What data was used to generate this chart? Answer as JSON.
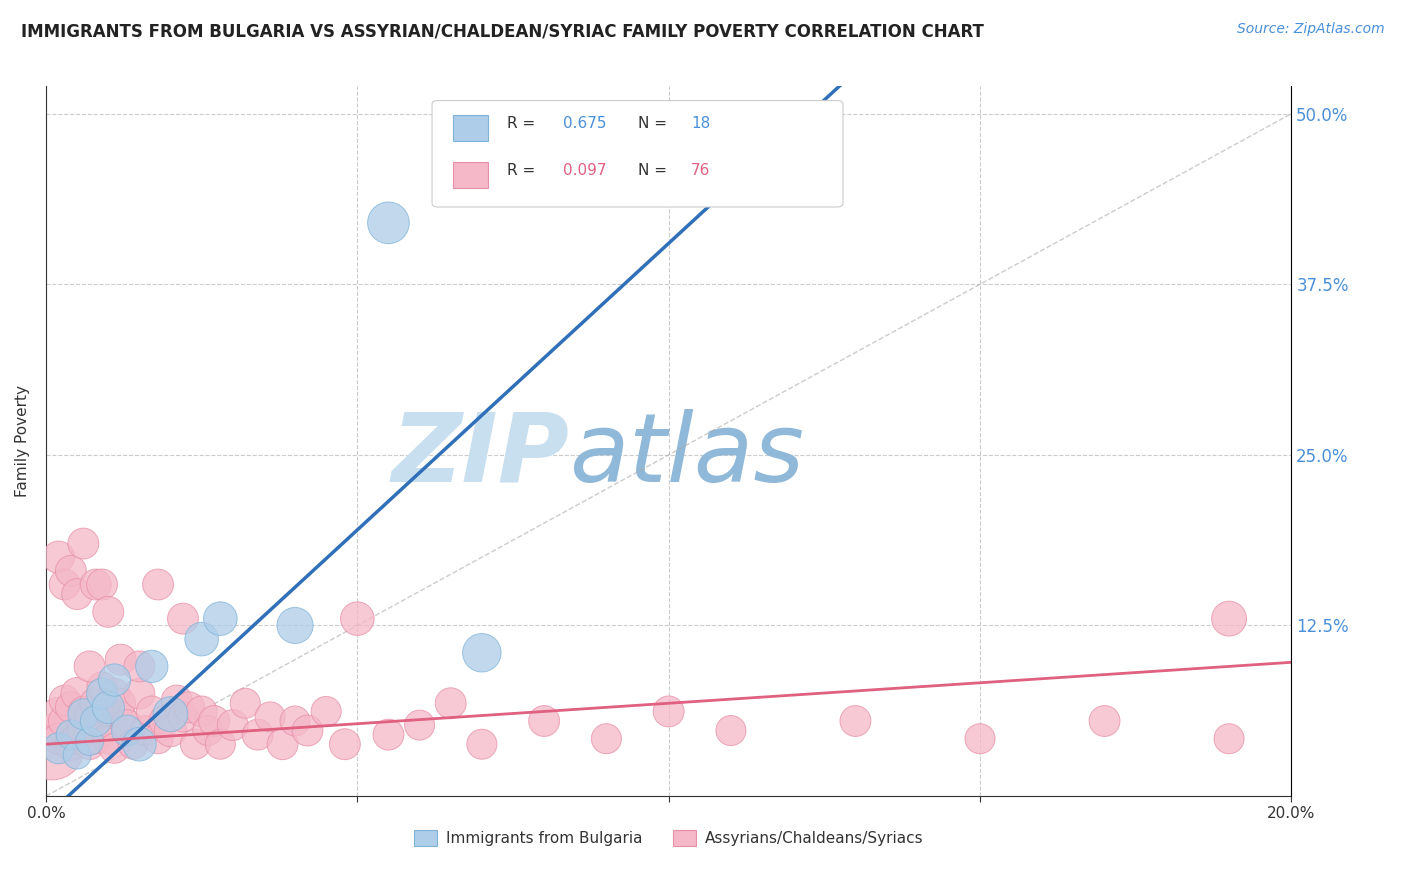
{
  "title": "IMMIGRANTS FROM BULGARIA VS ASSYRIAN/CHALDEAN/SYRIAC FAMILY POVERTY CORRELATION CHART",
  "source": "Source: ZipAtlas.com",
  "ylabel": "Family Poverty",
  "xlim": [
    0.0,
    0.2
  ],
  "ylim": [
    0.0,
    0.52
  ],
  "xticks": [
    0.0,
    0.05,
    0.1,
    0.15,
    0.2
  ],
  "yticks": [
    0.0,
    0.125,
    0.25,
    0.375,
    0.5
  ],
  "blue_R": "0.675",
  "blue_N": "18",
  "pink_R": "0.097",
  "pink_N": "76",
  "blue_color": "#aecde8",
  "pink_color": "#f4b8c8",
  "blue_edge_color": "#7fb3d8",
  "pink_edge_color": "#e88fa8",
  "blue_line_color": "#3070b8",
  "pink_line_color": "#e06080",
  "watermark_zip": "ZIP",
  "watermark_atlas": "atlas",
  "watermark_color_zip": "#c8dff0",
  "watermark_color_atlas": "#90b8d8",
  "legend_blue_label": "Immigrants from Bulgaria",
  "legend_pink_label": "Assyrians/Chaldeans/Syriacs",
  "blue_scatter_x": [
    0.002,
    0.004,
    0.005,
    0.006,
    0.007,
    0.008,
    0.009,
    0.01,
    0.011,
    0.013,
    0.015,
    0.017,
    0.02,
    0.025,
    0.028,
    0.04,
    0.055,
    0.07
  ],
  "blue_scatter_y": [
    0.035,
    0.045,
    0.03,
    0.06,
    0.04,
    0.055,
    0.075,
    0.065,
    0.085,
    0.048,
    0.038,
    0.095,
    0.06,
    0.115,
    0.13,
    0.125,
    0.42,
    0.105
  ],
  "blue_scatter_size": [
    55,
    50,
    45,
    55,
    45,
    55,
    55,
    60,
    60,
    55,
    65,
    60,
    70,
    65,
    65,
    75,
    100,
    85
  ],
  "pink_scatter_x": [
    0.001,
    0.001,
    0.002,
    0.002,
    0.003,
    0.003,
    0.004,
    0.004,
    0.005,
    0.005,
    0.006,
    0.006,
    0.007,
    0.007,
    0.008,
    0.008,
    0.009,
    0.009,
    0.01,
    0.01,
    0.011,
    0.011,
    0.012,
    0.012,
    0.013,
    0.014,
    0.015,
    0.016,
    0.017,
    0.018,
    0.019,
    0.02,
    0.021,
    0.022,
    0.023,
    0.024,
    0.025,
    0.026,
    0.027,
    0.028,
    0.03,
    0.032,
    0.034,
    0.036,
    0.038,
    0.04,
    0.042,
    0.045,
    0.048,
    0.05,
    0.055,
    0.06,
    0.065,
    0.07,
    0.08,
    0.09,
    0.1,
    0.11,
    0.13,
    0.15,
    0.17,
    0.19,
    0.002,
    0.003,
    0.004,
    0.005,
    0.006,
    0.007,
    0.008,
    0.009,
    0.01,
    0.012,
    0.015,
    0.018,
    0.022,
    0.19
  ],
  "pink_scatter_y": [
    0.035,
    0.048,
    0.06,
    0.042,
    0.055,
    0.07,
    0.038,
    0.065,
    0.075,
    0.042,
    0.05,
    0.062,
    0.038,
    0.058,
    0.068,
    0.042,
    0.055,
    0.08,
    0.042,
    0.062,
    0.075,
    0.035,
    0.058,
    0.068,
    0.052,
    0.038,
    0.075,
    0.048,
    0.062,
    0.042,
    0.055,
    0.048,
    0.07,
    0.058,
    0.065,
    0.038,
    0.062,
    0.048,
    0.055,
    0.038,
    0.052,
    0.068,
    0.045,
    0.058,
    0.038,
    0.055,
    0.048,
    0.062,
    0.038,
    0.13,
    0.045,
    0.052,
    0.068,
    0.038,
    0.055,
    0.042,
    0.062,
    0.048,
    0.055,
    0.042,
    0.055,
    0.042,
    0.175,
    0.155,
    0.165,
    0.148,
    0.185,
    0.095,
    0.155,
    0.155,
    0.135,
    0.1,
    0.095,
    0.155,
    0.13,
    0.13
  ],
  "pink_scatter_size": [
    230,
    60,
    65,
    55,
    60,
    55,
    60,
    55,
    60,
    55,
    58,
    52,
    55,
    52,
    58,
    52,
    55,
    52,
    55,
    52,
    55,
    52,
    55,
    52,
    55,
    52,
    55,
    52,
    55,
    52,
    55,
    60,
    55,
    52,
    55,
    52,
    55,
    52,
    55,
    52,
    55,
    52,
    55,
    52,
    55,
    52,
    55,
    52,
    55,
    65,
    55,
    52,
    55,
    52,
    55,
    52,
    55,
    52,
    55,
    52,
    55,
    52,
    60,
    55,
    55,
    55,
    55,
    55,
    55,
    55,
    55,
    55,
    55,
    55,
    55,
    70
  ]
}
